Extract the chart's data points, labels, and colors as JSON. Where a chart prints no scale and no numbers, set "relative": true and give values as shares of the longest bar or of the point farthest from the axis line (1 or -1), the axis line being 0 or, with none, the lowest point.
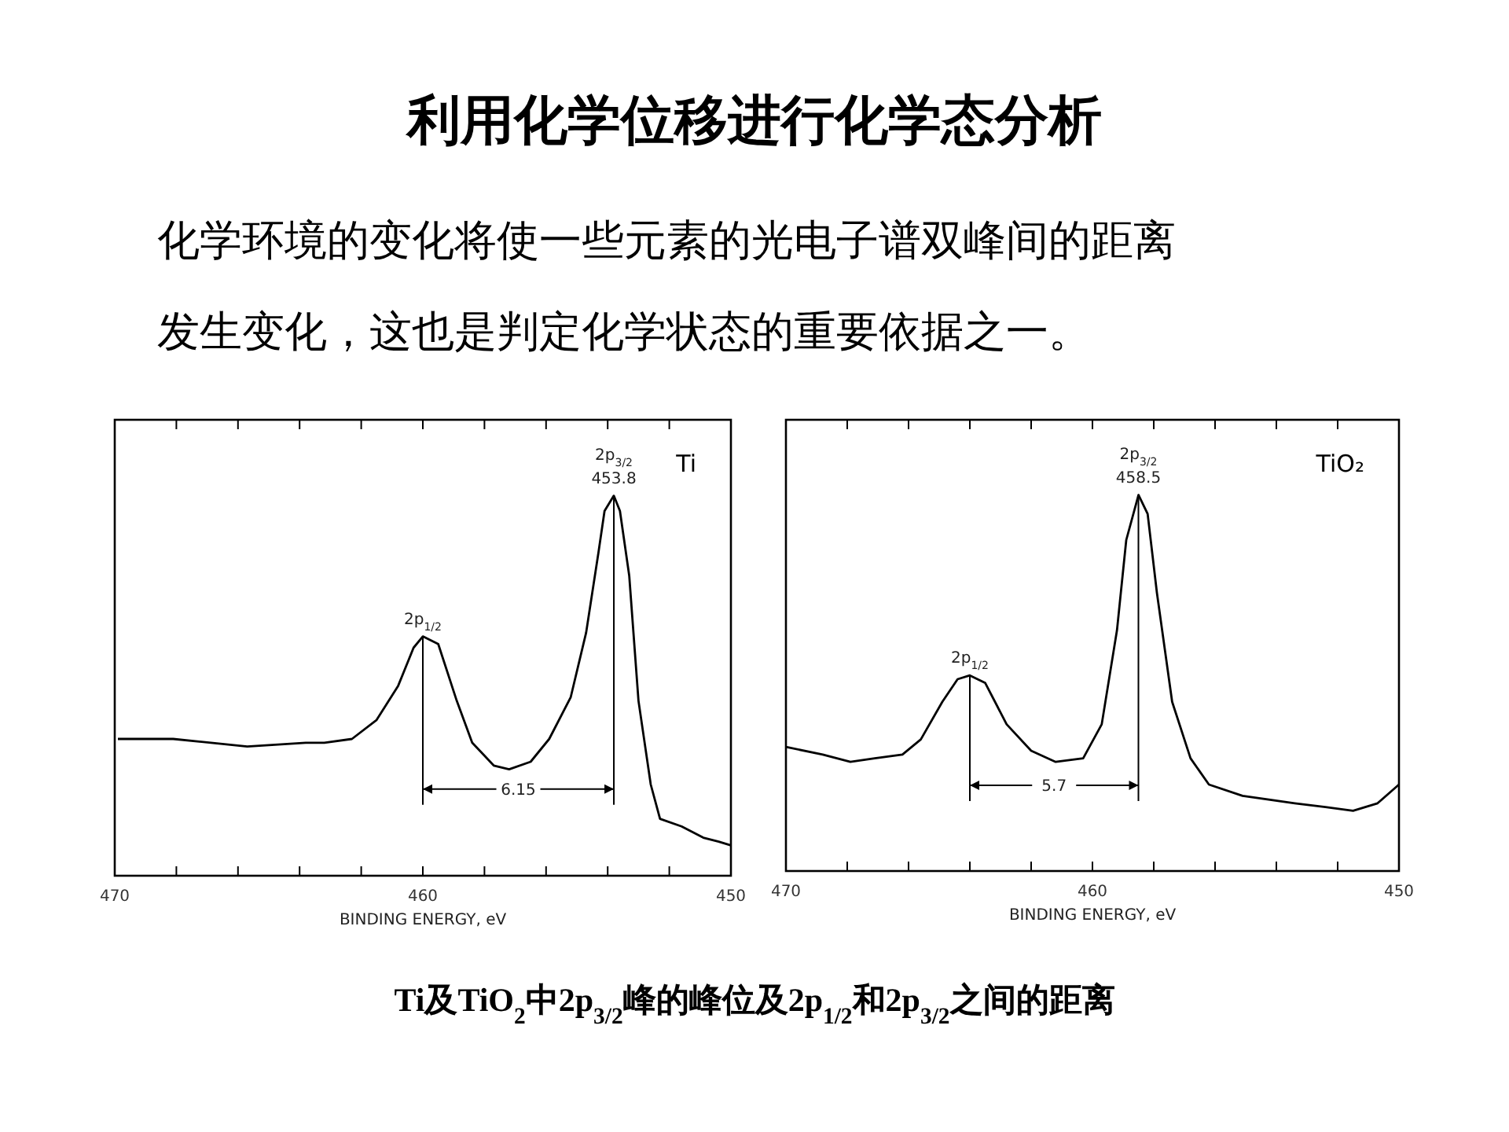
{
  "chart_data": [
    {
      "type": "other",
      "title": "利用化学位移进行化学态分析",
      "subtitle": "化学环境的变化将使一些元素的光电子谱双峰间的距离发生变化，这也是判定化学状态的重要依据之一。",
      "annotations": [
        "Ti及TiO$_{2}$中2p$_{3/2}$峰的峰位及2p$_{1/2}$和2p$_{3/2}$之间的距离"
      ]
    },
    {
      "type": "line",
      "title": "Ti",
      "xlabel": "BINDING ENERGY, eV",
      "relative": true,
      "grid": false,
      "color": "#000000",
      "xlim": [
        470,
        450
      ],
      "xticks": [
        470,
        {
          "value": 468,
          "label": null
        },
        {
          "value": 466,
          "label": null
        },
        {
          "value": 464,
          "label": null
        },
        {
          "value": 462,
          "label": null
        },
        460,
        {
          "value": 458,
          "label": null
        },
        {
          "value": 456,
          "label": null
        },
        {
          "value": 454,
          "label": null
        },
        {
          "value": 452,
          "label": null
        },
        450
      ],
      "x": [
        469.9,
        468.1,
        465.7,
        463.8,
        463.2,
        462.3,
        461.5,
        460.8,
        460.3,
        460.0,
        459.5,
        458.9,
        458.4,
        457.7,
        457.2,
        456.5,
        455.9,
        455.2,
        454.7,
        454.3,
        454.1,
        453.8,
        453.6,
        453.3,
        453.0,
        452.6,
        452.3,
        451.6,
        450.9,
        450.4,
        450.0
      ],
      "values": [
        0.36,
        0.36,
        0.34,
        0.35,
        0.35,
        0.36,
        0.41,
        0.5,
        0.6,
        0.63,
        0.61,
        0.46,
        0.35,
        0.29,
        0.28,
        0.3,
        0.36,
        0.47,
        0.64,
        0.85,
        0.96,
        1,
        0.96,
        0.79,
        0.46,
        0.24,
        0.15,
        0.13,
        0.1,
        0.09,
        0.08
      ],
      "annotations": [
        {
          "text": "2p$_{3/2}$",
          "x": 453.8,
          "y": 1
        },
        {
          "text": "453.8",
          "x": 453.8,
          "y": 1
        },
        {
          "text": "2p$_{1/2}$",
          "x": 460.0,
          "y": 0.63
        },
        "6.15"
      ],
      "ref_lines": [
        {
          "axis": "x",
          "value": 460.0
        },
        {
          "axis": "x",
          "value": 453.8
        }
      ]
    },
    {
      "type": "line",
      "title": "TiO₂",
      "xlabel": "BINDING ENERGY, eV",
      "relative": true,
      "grid": false,
      "color": "#000000",
      "xlim": [
        470,
        450
      ],
      "xticks": [
        470,
        {
          "value": 468,
          "label": null
        },
        {
          "value": 466,
          "label": null
        },
        {
          "value": 464,
          "label": null
        },
        {
          "value": 462,
          "label": null
        },
        460,
        {
          "value": 458,
          "label": null
        },
        {
          "value": 456,
          "label": null
        },
        {
          "value": 454,
          "label": null
        },
        {
          "value": 452,
          "label": null
        },
        450
      ],
      "x": [
        470.0,
        468.8,
        467.9,
        467.1,
        466.2,
        465.6,
        464.9,
        464.4,
        464.0,
        463.5,
        462.8,
        462.0,
        461.2,
        460.3,
        459.7,
        459.2,
        458.9,
        458.5,
        458.2,
        457.9,
        457.4,
        456.8,
        456.2,
        455.1,
        453.4,
        452.4,
        451.5,
        450.7,
        450.0
      ],
      "values": [
        0.33,
        0.31,
        0.29,
        0.3,
        0.31,
        0.35,
        0.45,
        0.51,
        0.52,
        0.5,
        0.39,
        0.32,
        0.29,
        0.3,
        0.39,
        0.64,
        0.88,
        1,
        0.95,
        0.74,
        0.45,
        0.3,
        0.23,
        0.2,
        0.18,
        0.17,
        0.16,
        0.18,
        0.23
      ],
      "annotations": [
        {
          "text": "2p$_{3/2}$",
          "x": 458.5,
          "y": 1
        },
        {
          "text": "458.5",
          "x": 458.5,
          "y": 1
        },
        {
          "text": "2p$_{1/2}$",
          "x": 464.0,
          "y": 0.52
        },
        "5.7"
      ],
      "ref_lines": [
        {
          "axis": "x",
          "value": 464.0
        },
        {
          "axis": "x",
          "value": 458.5
        }
      ]
    }
  ]
}
